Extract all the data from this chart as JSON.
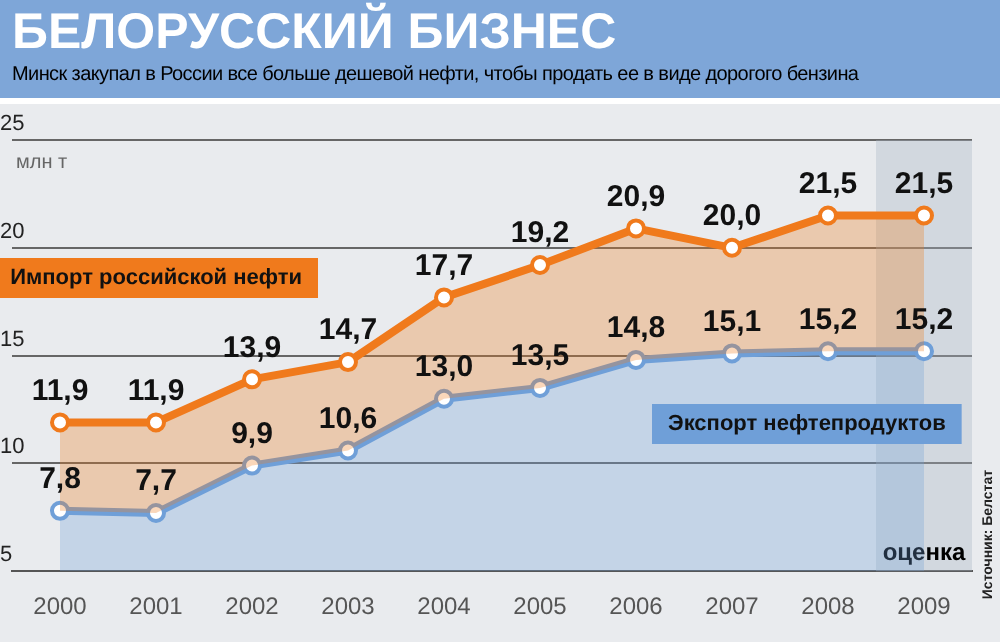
{
  "chart_data": {
    "type": "area",
    "title": "БЕЛОРУССКИЙ БИЗНЕС",
    "subtitle": "Минск закупал в России все больше дешевой нефти, чтобы продать ее в виде дорогого бензина",
    "ylabel": "млн т",
    "categories": [
      "2000",
      "2001",
      "2002",
      "2003",
      "2004",
      "2005",
      "2006",
      "2007",
      "2008",
      "2009"
    ],
    "series": [
      {
        "name": "Импорт российской нефти",
        "color": "#f07a1c",
        "values": [
          11.9,
          11.9,
          13.9,
          14.7,
          17.7,
          19.2,
          20.9,
          20.0,
          21.5,
          21.5
        ],
        "value_labels": [
          "11,9",
          "11,9",
          "13,9",
          "14,7",
          "17,7",
          "19,2",
          "20,9",
          "20,0",
          "21,5",
          "21,5"
        ]
      },
      {
        "name": "Экспорт нефтепродуктов",
        "color": "#6f9fd8",
        "values": [
          7.8,
          7.7,
          9.9,
          10.6,
          13.0,
          13.5,
          14.8,
          15.1,
          15.2,
          15.2
        ],
        "value_labels": [
          "7,8",
          "7,7",
          "9,9",
          "10,6",
          "13,0",
          "13,5",
          "14,8",
          "15,1",
          "15,2",
          "15,2"
        ]
      }
    ],
    "ylim": [
      5,
      25
    ],
    "yticks": [
      5,
      10,
      15,
      20,
      25
    ],
    "grid": "y",
    "marker": "circle",
    "legend": false,
    "bands": [
      {
        "axis": "x",
        "from": "2009",
        "to": "2009",
        "label": "оценка"
      }
    ],
    "annotations": [
      "Источник: Белстат"
    ]
  }
}
